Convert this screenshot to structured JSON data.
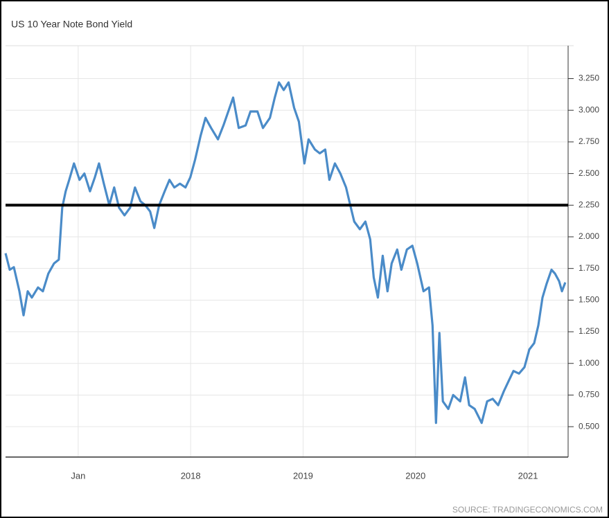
{
  "chart_data": {
    "type": "line",
    "title": "US 10 Year Note Bond Yield",
    "source": "SOURCE: TRADINGECONOMICS.COM",
    "x": [
      2016.354,
      2016.391,
      2016.428,
      2016.477,
      2016.514,
      2016.551,
      2016.588,
      2016.643,
      2016.686,
      2016.735,
      2016.785,
      2016.828,
      2016.858,
      2016.889,
      2016.92,
      2016.963,
      2017.012,
      2017.055,
      2017.105,
      2017.148,
      2017.185,
      2017.228,
      2017.277,
      2017.32,
      2017.363,
      2017.412,
      2017.462,
      2017.505,
      2017.554,
      2017.597,
      2017.64,
      2017.677,
      2017.72,
      2017.769,
      2017.812,
      2017.855,
      2017.905,
      2017.954,
      2017.997,
      2018.04,
      2018.089,
      2018.132,
      2018.182,
      2018.243,
      2018.292,
      2018.335,
      2018.378,
      2018.428,
      2018.489,
      2018.532,
      2018.594,
      2018.643,
      2018.705,
      2018.748,
      2018.785,
      2018.828,
      2018.871,
      2018.92,
      2018.963,
      2019.012,
      2019.049,
      2019.105,
      2019.148,
      2019.197,
      2019.234,
      2019.283,
      2019.332,
      2019.382,
      2019.425,
      2019.455,
      2019.505,
      2019.554,
      2019.597,
      2019.628,
      2019.665,
      2019.708,
      2019.751,
      2019.788,
      2019.837,
      2019.874,
      2019.923,
      2019.972,
      2020.015,
      2020.071,
      2020.12,
      2020.151,
      2020.182,
      2020.212,
      2020.243,
      2020.292,
      2020.335,
      2020.397,
      2020.44,
      2020.477,
      2020.526,
      2020.588,
      2020.637,
      2020.686,
      2020.735,
      2020.785,
      2020.828,
      2020.871,
      2020.92,
      2020.969,
      2021.012,
      2021.055,
      2021.092,
      2021.129,
      2021.166,
      2021.209,
      2021.24,
      2021.277,
      2021.302,
      2021.332
    ],
    "series": [
      {
        "name": "US 10 Year Note Bond Yield",
        "color": "#4a8bc8",
        "values": [
          1.87,
          1.74,
          1.76,
          1.57,
          1.38,
          1.57,
          1.52,
          1.6,
          1.57,
          1.71,
          1.79,
          1.82,
          2.23,
          2.36,
          2.45,
          2.58,
          2.45,
          2.5,
          2.36,
          2.47,
          2.58,
          2.42,
          2.25,
          2.39,
          2.23,
          2.17,
          2.23,
          2.39,
          2.28,
          2.25,
          2.2,
          2.07,
          2.25,
          2.36,
          2.45,
          2.39,
          2.42,
          2.39,
          2.47,
          2.61,
          2.8,
          2.94,
          2.86,
          2.77,
          2.88,
          2.99,
          3.1,
          2.86,
          2.88,
          2.99,
          2.99,
          2.86,
          2.94,
          3.1,
          3.22,
          3.16,
          3.22,
          3.02,
          2.91,
          2.58,
          2.77,
          2.69,
          2.66,
          2.69,
          2.45,
          2.58,
          2.5,
          2.39,
          2.23,
          2.12,
          2.06,
          2.12,
          1.98,
          1.68,
          1.52,
          1.85,
          1.57,
          1.79,
          1.9,
          1.74,
          1.9,
          1.93,
          1.79,
          1.57,
          1.6,
          1.3,
          0.53,
          1.24,
          0.7,
          0.64,
          0.75,
          0.7,
          0.89,
          0.67,
          0.64,
          0.53,
          0.7,
          0.72,
          0.67,
          0.78,
          0.86,
          0.94,
          0.92,
          0.97,
          1.11,
          1.16,
          1.3,
          1.52,
          1.63,
          1.74,
          1.71,
          1.65,
          1.57,
          1.64
        ]
      }
    ],
    "reference_line": 2.25,
    "reference_color": "#000000",
    "xlim": [
      2016.354,
      2021.357
    ],
    "xticks": [
      {
        "value": 2017,
        "label": "Jan"
      },
      2018,
      2019,
      2020,
      2021
    ],
    "ylim": [
      0.26,
      3.51
    ],
    "yticks": [
      {
        "value": 0.5,
        "label": "0.500"
      },
      {
        "value": 0.75,
        "label": "0.750"
      },
      {
        "value": 1,
        "label": "1.000"
      },
      {
        "value": 1.25,
        "label": "1.250"
      },
      {
        "value": 1.5,
        "label": "1.500"
      },
      {
        "value": 1.75,
        "label": "1.750"
      },
      {
        "value": 2,
        "label": "2.000"
      },
      {
        "value": 2.25,
        "label": "2.250"
      },
      {
        "value": 2.5,
        "label": "2.500"
      },
      {
        "value": 2.75,
        "label": "2.750"
      },
      {
        "value": 3,
        "label": "3.000"
      },
      {
        "value": 3.25,
        "label": "3.250"
      }
    ],
    "grid": true
  }
}
